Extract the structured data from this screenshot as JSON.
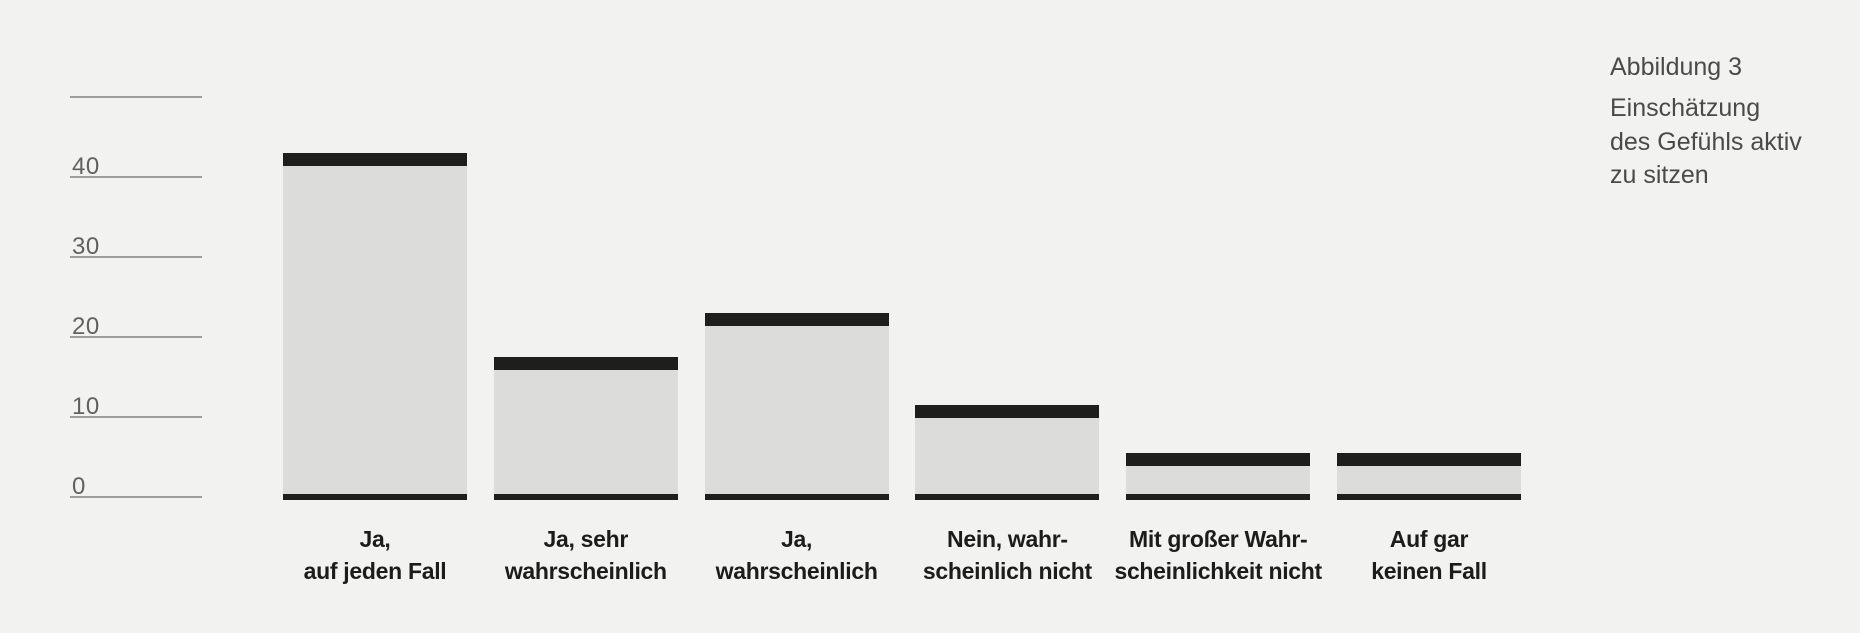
{
  "figure": {
    "label": "Abbildung 3",
    "caption_lines": [
      "Einschätzung",
      "des Gefühls aktiv",
      "zu sitzen"
    ]
  },
  "chart_data": {
    "type": "bar",
    "title": "Abbildung 3 – Einschätzung des Gefühls aktiv zu sitzen",
    "categories": [
      "Ja, auf jeden Fall",
      "Ja, sehr wahrscheinlich",
      "Ja, wahrscheinlich",
      "Nein, wahrscheinlich nicht",
      "Mit großer Wahrscheinlichkeit nicht",
      "Auf gar keinen Fall"
    ],
    "category_label_lines": [
      [
        "Ja,",
        "auf jeden Fall"
      ],
      [
        "Ja, sehr",
        "wahrscheinlich"
      ],
      [
        "Ja,",
        "wahrscheinlich"
      ],
      [
        "Nein, wahr-",
        "scheinlich nicht"
      ],
      [
        "Mit großer Wahr-",
        "scheinlichkeit nicht"
      ],
      [
        "Auf gar",
        "keinen Fall"
      ]
    ],
    "values": [
      43,
      17.5,
      23,
      11.5,
      5.5,
      5.5
    ],
    "xlabel": "",
    "ylabel": "",
    "ylim": [
      0,
      50
    ],
    "yticks": [
      0,
      10,
      20,
      30,
      40,
      50
    ],
    "ytick_labels": [
      "0",
      "10",
      "20",
      "30",
      "40",
      ""
    ],
    "grid": false,
    "legend": false,
    "bar_style": "light gray bar with black top cap and black baseline segment"
  },
  "colors": {
    "background": "#f2f2f0",
    "bar_fill": "#dcdcda",
    "bar_cap": "#1e1e1c",
    "baseline": "#1e1e1c",
    "tick_line": "#9e9e9c",
    "tick_label": "#616161",
    "caption_text": "#4a4a48",
    "category_label": "#1c1c1a"
  }
}
